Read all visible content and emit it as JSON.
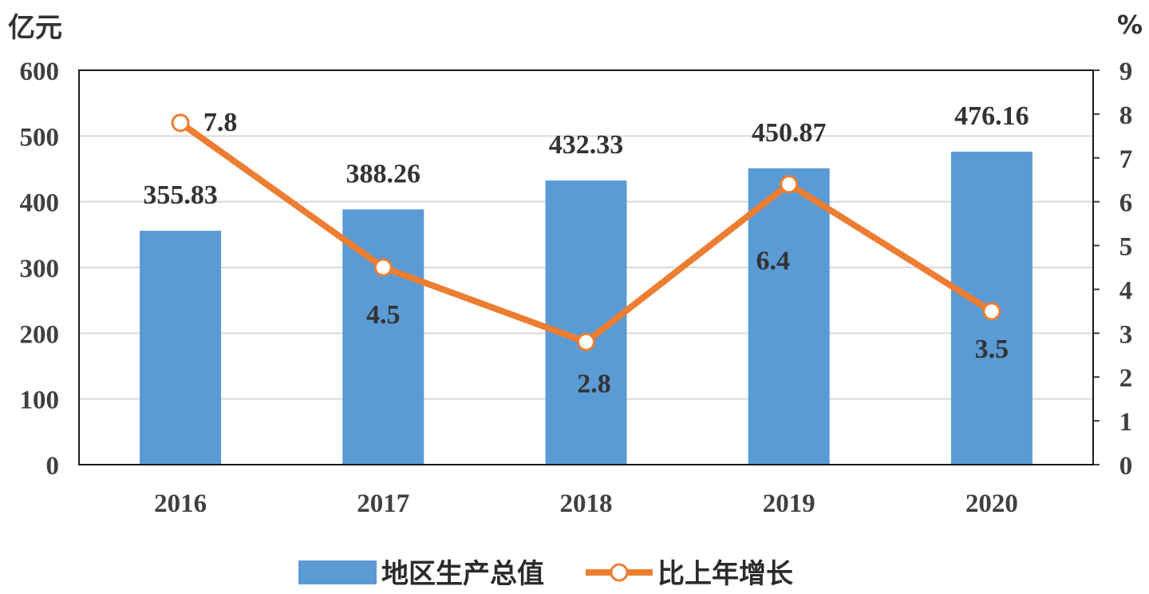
{
  "chart_data": {
    "type": "bar+line",
    "left_axis_unit": "亿元",
    "right_axis_unit": "%",
    "categories": [
      "2016",
      "2017",
      "2018",
      "2019",
      "2020"
    ],
    "bar_series": {
      "name": "地区生产总值",
      "values": [
        355.83,
        388.26,
        432.33,
        450.87,
        476.16
      ],
      "labels": [
        "355.83",
        "388.26",
        "432.33",
        "450.87",
        "476.16"
      ],
      "color": "#5b9bd5"
    },
    "line_series": {
      "name": "比上年增长",
      "values": [
        7.8,
        4.5,
        2.8,
        6.4,
        3.5
      ],
      "labels": [
        "7.8",
        "4.5",
        "2.8",
        "6.4",
        "3.5"
      ],
      "color": "#ed7d31"
    },
    "left_axis": {
      "min": 0,
      "max": 600,
      "ticks": [
        "0",
        "100",
        "200",
        "300",
        "400",
        "500",
        "600"
      ]
    },
    "right_axis": {
      "min": 0,
      "max": 9,
      "ticks": [
        "0",
        "1",
        "2",
        "3",
        "4",
        "5",
        "6",
        "7",
        "8",
        "9"
      ]
    },
    "grid": true,
    "legend_position": "bottom"
  }
}
